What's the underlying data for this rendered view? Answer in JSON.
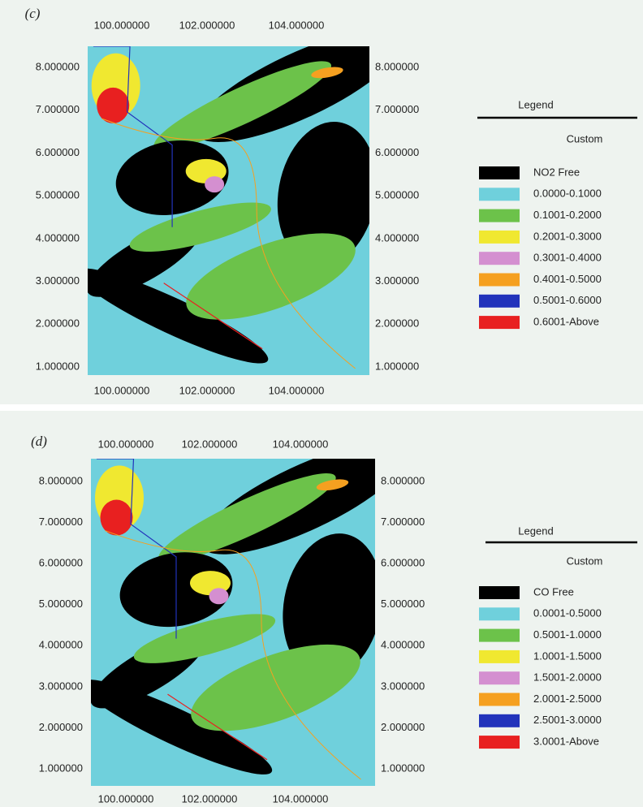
{
  "panels": [
    {
      "label": "(c)",
      "top_ticks": [
        "100.000000",
        "102.000000",
        "104.000000"
      ],
      "bottom_ticks": [
        "100.000000",
        "102.000000",
        "104.000000"
      ],
      "left_ticks": [
        "8.000000",
        "7.000000",
        "6.000000",
        "5.000000",
        "4.000000",
        "3.000000",
        "2.000000",
        "1.000000"
      ],
      "right_ticks": [
        "8.000000",
        "7.000000",
        "6.000000",
        "5.000000",
        "4.000000",
        "3.000000",
        "2.000000",
        "1.000000"
      ],
      "legend": {
        "title": "Legend",
        "subtitle": "Custom",
        "items": [
          {
            "label": "NO2 Free",
            "color": "#000000"
          },
          {
            "label": "0.0000-0.1000",
            "color": "#6fd0dc"
          },
          {
            "label": "0.1001-0.2000",
            "color": "#6cc24a"
          },
          {
            "label": "0.2001-0.3000",
            "color": "#f0e830"
          },
          {
            "label": "0.3001-0.4000",
            "color": "#d48fd0"
          },
          {
            "label": "0.4001-0.5000",
            "color": "#f5a020"
          },
          {
            "label": "0.5001-0.6000",
            "color": "#2233bb"
          },
          {
            "label": "0.6001-Above",
            "color": "#e82020"
          }
        ]
      }
    },
    {
      "label": "(d)",
      "top_ticks": [
        "100.000000",
        "102.000000",
        "104.000000"
      ],
      "bottom_ticks": [
        "100.000000",
        "102.000000",
        "104.000000"
      ],
      "left_ticks": [
        "8.000000",
        "7.000000",
        "6.000000",
        "5.000000",
        "4.000000",
        "3.000000",
        "2.000000",
        "1.000000"
      ],
      "right_ticks": [
        "8.000000",
        "7.000000",
        "6.000000",
        "5.000000",
        "4.000000",
        "3.000000",
        "2.000000",
        "1.000000"
      ],
      "legend": {
        "title": "Legend",
        "subtitle": "Custom",
        "items": [
          {
            "label": "CO Free",
            "color": "#000000"
          },
          {
            "label": "0.0001-0.5000",
            "color": "#6fd0dc"
          },
          {
            "label": "0.5001-1.0000",
            "color": "#6cc24a"
          },
          {
            "label": "1.0001-1.5000",
            "color": "#f0e830"
          },
          {
            "label": "1.5001-2.0000",
            "color": "#d48fd0"
          },
          {
            "label": "2.0001-2.5000",
            "color": "#f5a020"
          },
          {
            "label": "2.5001-3.0000",
            "color": "#2233bb"
          },
          {
            "label": "3.0001-Above",
            "color": "#e82020"
          }
        ]
      }
    }
  ]
}
